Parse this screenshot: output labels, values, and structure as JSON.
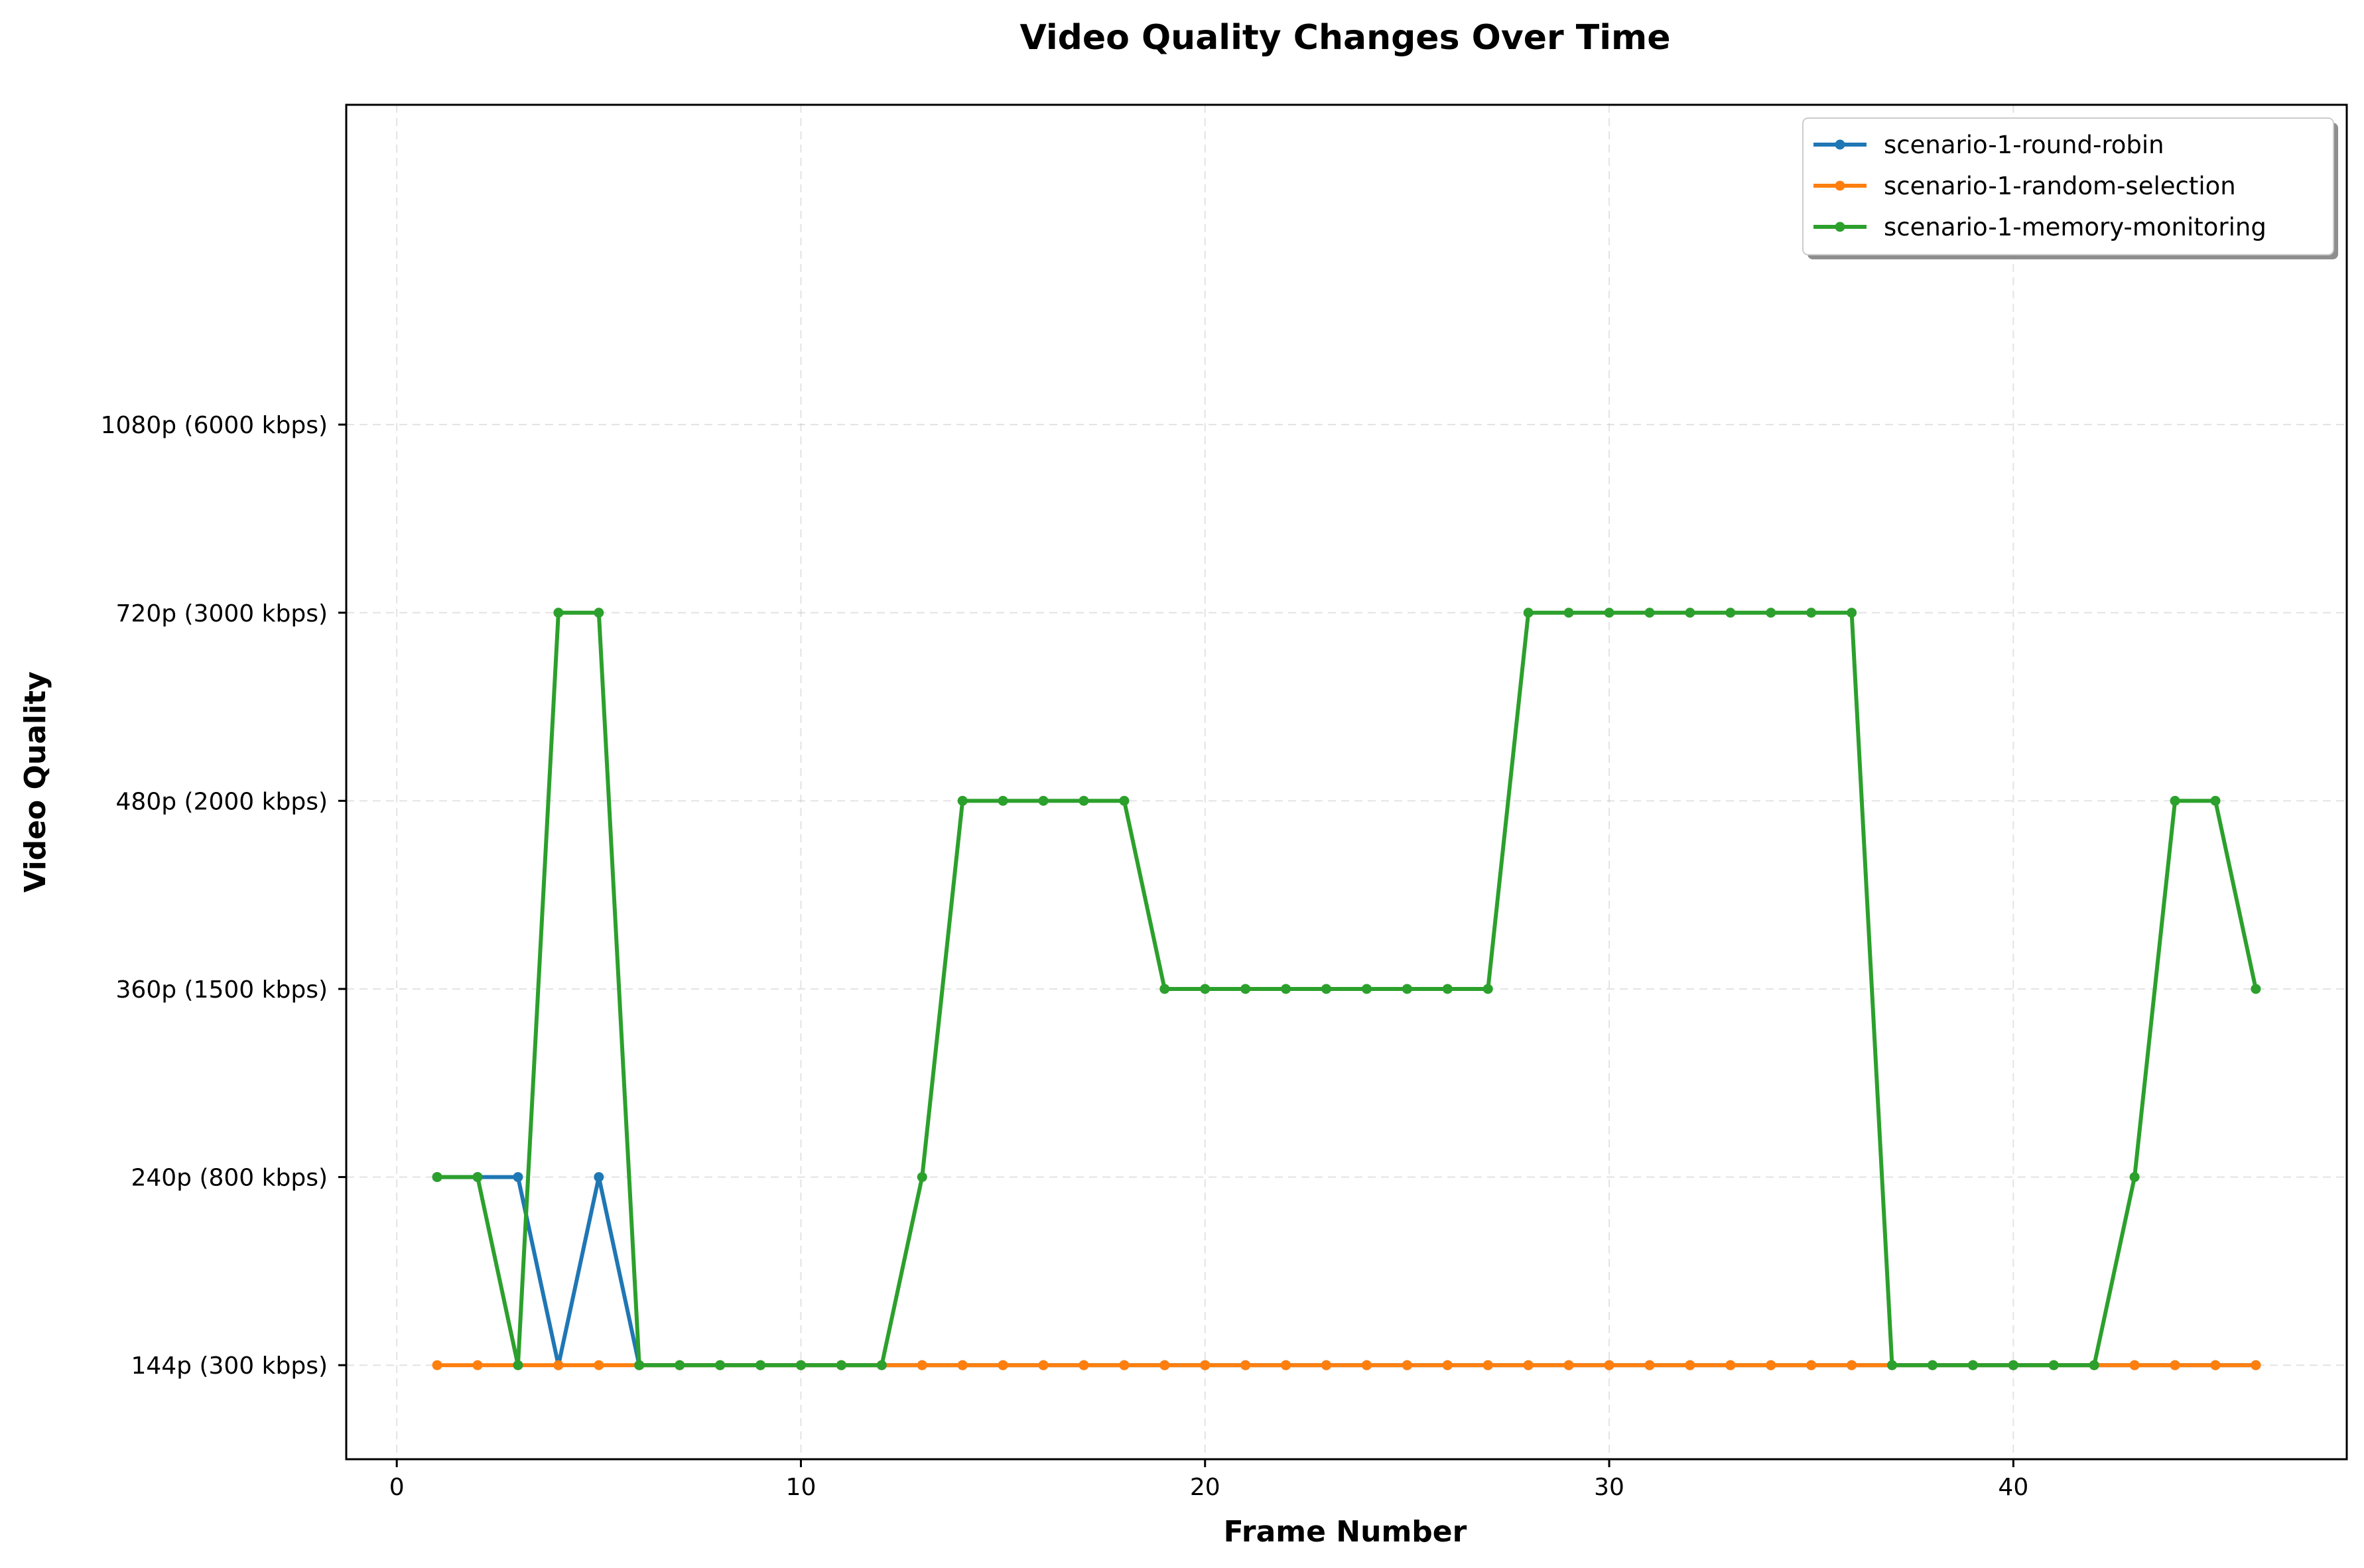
{
  "chart_data": {
    "type": "line",
    "title": "Video Quality Changes Over Time",
    "xlabel": "Frame Number",
    "ylabel": "Video Quality",
    "xlim": [
      -1.25,
      48.25
    ],
    "ylim": [
      -0.5,
      6.7
    ],
    "xticks": [
      0,
      10,
      20,
      30,
      40
    ],
    "yticks": [
      {
        "value": 0,
        "label": "144p (300 kbps)"
      },
      {
        "value": 1,
        "label": "240p (800 kbps)"
      },
      {
        "value": 2,
        "label": "360p (1500 kbps)"
      },
      {
        "value": 3,
        "label": "480p (2000 kbps)"
      },
      {
        "value": 4,
        "label": "720p (3000 kbps)"
      },
      {
        "value": 5,
        "label": "1080p (6000 kbps)"
      }
    ],
    "grid": true,
    "legend_position": "top-right",
    "x": [
      1,
      2,
      3,
      4,
      5,
      6,
      7,
      8,
      9,
      10,
      11,
      12,
      13,
      14,
      15,
      16,
      17,
      18,
      19,
      20,
      21,
      22,
      23,
      24,
      25,
      26,
      27,
      28,
      29,
      30,
      31,
      32,
      33,
      34,
      35,
      36,
      37,
      38,
      39,
      40,
      41,
      42,
      43,
      44,
      45,
      46
    ],
    "series": [
      {
        "name": "scenario-1-round-robin",
        "color": "#1f77b4",
        "values": [
          1,
          1,
          1,
          0,
          1,
          0,
          0,
          0,
          0,
          0,
          0,
          0,
          0,
          0,
          0,
          0,
          0,
          0,
          0,
          0,
          0,
          0,
          0,
          0,
          0,
          0,
          0,
          0,
          0,
          0,
          0,
          0,
          0,
          0,
          0,
          0,
          0,
          0,
          0,
          0,
          0,
          0,
          0,
          0,
          0,
          0
        ]
      },
      {
        "name": "scenario-1-random-selection",
        "color": "#ff7f0e",
        "values": [
          0,
          0,
          0,
          0,
          0,
          0,
          0,
          0,
          0,
          0,
          0,
          0,
          0,
          0,
          0,
          0,
          0,
          0,
          0,
          0,
          0,
          0,
          0,
          0,
          0,
          0,
          0,
          0,
          0,
          0,
          0,
          0,
          0,
          0,
          0,
          0,
          0,
          0,
          0,
          0,
          0,
          0,
          0,
          0,
          0,
          0
        ]
      },
      {
        "name": "scenario-1-memory-monitoring",
        "color": "#2ca02c",
        "values": [
          1,
          1,
          0,
          4,
          4,
          0,
          0,
          0,
          0,
          0,
          0,
          0,
          1,
          3,
          3,
          3,
          3,
          3,
          2,
          2,
          2,
          2,
          2,
          2,
          2,
          2,
          2,
          4,
          4,
          4,
          4,
          4,
          4,
          4,
          4,
          4,
          0,
          0,
          0,
          0,
          0,
          0,
          1,
          3,
          3,
          2
        ]
      }
    ]
  }
}
